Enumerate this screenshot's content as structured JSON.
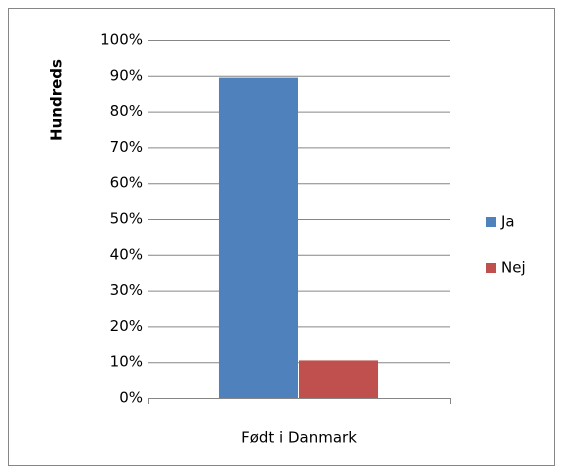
{
  "chart_data": {
    "type": "bar",
    "y_label": "Hundreds",
    "categories": [
      "Født i Danmark"
    ],
    "series": [
      {
        "name": "Ja",
        "color": "#4f81bd",
        "values": [
          89.5
        ]
      },
      {
        "name": "Nej",
        "color": "#c0504d",
        "values": [
          10.5
        ]
      }
    ],
    "ylim": [
      0,
      100
    ],
    "yticks": [
      {
        "value": 0,
        "label": "0%"
      },
      {
        "value": 10,
        "label": "10%"
      },
      {
        "value": 20,
        "label": "20%"
      },
      {
        "value": 30,
        "label": "30%"
      },
      {
        "value": 40,
        "label": "40%"
      },
      {
        "value": 50,
        "label": "50%"
      },
      {
        "value": 60,
        "label": "60%"
      },
      {
        "value": 70,
        "label": "70%"
      },
      {
        "value": 80,
        "label": "80%"
      },
      {
        "value": 90,
        "label": "90%"
      },
      {
        "value": 100,
        "label": "100%"
      }
    ],
    "grid": true
  }
}
